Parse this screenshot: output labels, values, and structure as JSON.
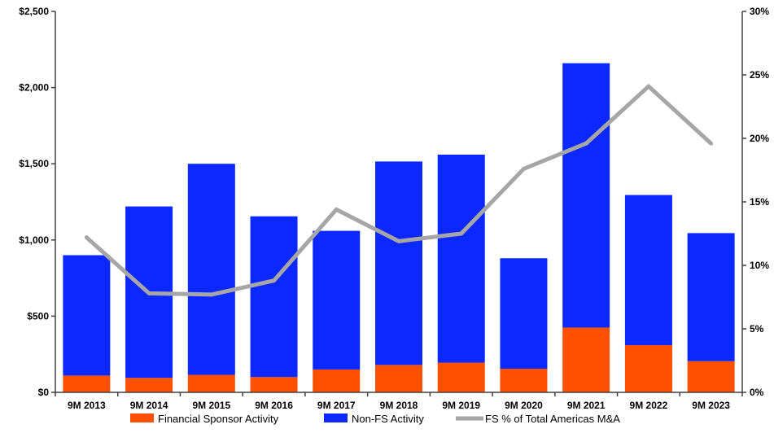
{
  "chart_data": {
    "type": "bar",
    "stacked": true,
    "categories": [
      "9M 2013",
      "9M 2014",
      "9M 2015",
      "9M 2016",
      "9M 2017",
      "9M 2018",
      "9M 2019",
      "9M 2020",
      "9M 2021",
      "9M 2022",
      "9M 2023"
    ],
    "series": [
      {
        "name": "Financial Sponsor Activity",
        "type": "bar",
        "axis": "left",
        "color": "#ff5000",
        "values": [
          110,
          95,
          115,
          100,
          150,
          180,
          195,
          155,
          425,
          310,
          205
        ]
      },
      {
        "name": "Non-FS Activity",
        "type": "bar",
        "axis": "left",
        "color": "#0a28ff",
        "values": [
          790,
          1125,
          1385,
          1055,
          910,
          1335,
          1365,
          725,
          1735,
          985,
          840
        ]
      },
      {
        "name": "FS % of Total Americas M&A",
        "type": "line",
        "axis": "right",
        "color": "#a6a6a6",
        "values": [
          12.2,
          7.8,
          7.7,
          8.8,
          14.4,
          11.9,
          12.5,
          17.6,
          19.6,
          24.1,
          19.6
        ]
      }
    ],
    "y_left": {
      "min": 0,
      "max": 2500,
      "ticks": [
        "$0",
        "$500",
        "$1,000",
        "$1,500",
        "$2,000",
        "$2,500"
      ]
    },
    "y_right": {
      "min": 0,
      "max": 30,
      "ticks": [
        "0%",
        "5%",
        "10%",
        "15%",
        "20%",
        "25%",
        "30%"
      ]
    },
    "legend_position": "bottom",
    "grid": false
  }
}
